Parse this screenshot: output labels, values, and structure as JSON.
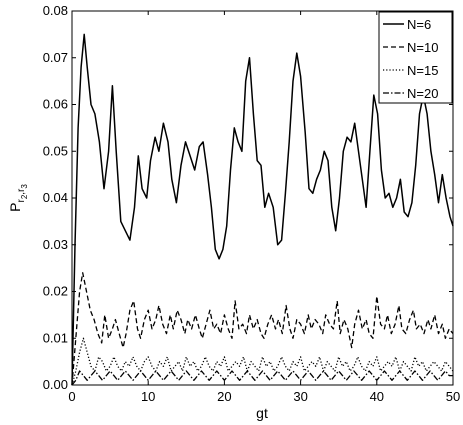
{
  "chart_data": {
    "type": "line",
    "title": "",
    "xlabel": "gt",
    "ylabel_main": "P",
    "ylabel_sub1": "r",
    "ylabel_sub1_index": "2",
    "ylabel_sep": ",",
    "ylabel_sub2": "r",
    "ylabel_sub2_index": "3",
    "xlim": [
      0,
      50
    ],
    "ylim": [
      0,
      0.08
    ],
    "x_ticks": [
      0,
      10,
      20,
      30,
      40,
      50
    ],
    "x_tick_labels": [
      "0",
      "10",
      "20",
      "30",
      "40",
      "50"
    ],
    "y_ticks": [
      0,
      0.01,
      0.02,
      0.03,
      0.04,
      0.05,
      0.06,
      0.07,
      0.08
    ],
    "y_tick_labels": [
      "0.00",
      "0.01",
      "0.02",
      "0.03",
      "0.04",
      "0.05",
      "0.06",
      "0.07",
      "0.08"
    ],
    "grid": false,
    "legend_position": "top-right",
    "series": [
      {
        "name": "N=6",
        "style": "solid",
        "x": [
          0,
          0.4,
          0.8,
          1.2,
          1.6,
          2.0,
          2.5,
          3.0,
          3.6,
          4.2,
          4.8,
          5.3,
          5.8,
          6.4,
          7.0,
          7.6,
          8.2,
          8.7,
          9.2,
          9.8,
          10.3,
          10.9,
          11.4,
          12.0,
          12.6,
          13.1,
          13.7,
          14.3,
          14.9,
          15.5,
          16.1,
          16.7,
          17.2,
          17.8,
          18.3,
          18.8,
          19.3,
          19.8,
          20.3,
          20.8,
          21.3,
          21.8,
          22.3,
          22.8,
          23.3,
          23.8,
          24.3,
          24.8,
          25.3,
          25.8,
          26.4,
          27.0,
          27.5,
          28.0,
          28.5,
          29.0,
          29.5,
          30.0,
          30.6,
          31.1,
          31.6,
          32.1,
          32.6,
          33.1,
          33.6,
          34.1,
          34.6,
          35.1,
          35.6,
          36.1,
          36.6,
          37.1,
          37.6,
          38.1,
          38.6,
          39.1,
          39.6,
          40.1,
          40.6,
          41.1,
          41.6,
          42.1,
          42.6,
          43.1,
          43.6,
          44.1,
          44.6,
          45.1,
          45.6,
          46.1,
          46.6,
          47.1,
          47.6,
          48.1,
          48.6,
          49.1,
          49.6,
          50.0
        ],
        "y": [
          0.0,
          0.03,
          0.055,
          0.068,
          0.075,
          0.068,
          0.06,
          0.058,
          0.052,
          0.042,
          0.05,
          0.064,
          0.05,
          0.035,
          0.033,
          0.031,
          0.038,
          0.049,
          0.042,
          0.04,
          0.048,
          0.053,
          0.05,
          0.056,
          0.052,
          0.044,
          0.039,
          0.047,
          0.052,
          0.049,
          0.046,
          0.051,
          0.052,
          0.045,
          0.038,
          0.029,
          0.027,
          0.029,
          0.034,
          0.046,
          0.055,
          0.052,
          0.05,
          0.065,
          0.07,
          0.058,
          0.048,
          0.047,
          0.038,
          0.041,
          0.038,
          0.03,
          0.031,
          0.041,
          0.052,
          0.065,
          0.071,
          0.066,
          0.054,
          0.042,
          0.041,
          0.044,
          0.046,
          0.05,
          0.048,
          0.038,
          0.033,
          0.04,
          0.05,
          0.053,
          0.052,
          0.056,
          0.05,
          0.044,
          0.038,
          0.05,
          0.062,
          0.058,
          0.046,
          0.04,
          0.041,
          0.038,
          0.04,
          0.044,
          0.037,
          0.036,
          0.039,
          0.047,
          0.058,
          0.062,
          0.058,
          0.05,
          0.045,
          0.039,
          0.045,
          0.04,
          0.036,
          0.034
        ]
      },
      {
        "name": "N=10",
        "style": "dashed",
        "x": [
          0,
          0.5,
          1.0,
          1.4,
          1.9,
          2.4,
          2.9,
          3.4,
          3.9,
          4.3,
          4.8,
          5.3,
          5.7,
          6.2,
          6.7,
          7.1,
          7.6,
          8.1,
          8.6,
          9.0,
          9.5,
          10.0,
          10.5,
          11.0,
          11.4,
          11.9,
          12.4,
          12.9,
          13.3,
          13.8,
          14.3,
          14.8,
          15.2,
          15.7,
          16.2,
          16.7,
          17.1,
          17.6,
          18.1,
          18.6,
          19.0,
          19.5,
          20.0,
          20.5,
          21.0,
          21.4,
          21.9,
          22.4,
          22.9,
          23.3,
          23.8,
          24.3,
          24.8,
          25.2,
          25.7,
          26.2,
          26.7,
          27.1,
          27.6,
          28.1,
          28.6,
          29.0,
          29.5,
          30.0,
          30.5,
          31.0,
          31.4,
          31.9,
          32.4,
          32.9,
          33.3,
          33.8,
          34.3,
          34.8,
          35.2,
          35.7,
          36.2,
          36.7,
          37.1,
          37.6,
          38.1,
          38.6,
          39.0,
          39.5,
          40.0,
          40.5,
          41.0,
          41.4,
          41.9,
          42.4,
          42.9,
          43.3,
          43.8,
          44.3,
          44.8,
          45.2,
          45.7,
          46.2,
          46.7,
          47.1,
          47.6,
          48.1,
          48.6,
          49.0,
          49.5,
          50.0
        ],
        "y": [
          0.0,
          0.01,
          0.02,
          0.024,
          0.02,
          0.016,
          0.014,
          0.011,
          0.009,
          0.015,
          0.01,
          0.012,
          0.014,
          0.011,
          0.008,
          0.011,
          0.016,
          0.018,
          0.012,
          0.01,
          0.014,
          0.016,
          0.012,
          0.014,
          0.017,
          0.013,
          0.011,
          0.015,
          0.012,
          0.016,
          0.014,
          0.011,
          0.014,
          0.012,
          0.015,
          0.012,
          0.01,
          0.013,
          0.016,
          0.012,
          0.013,
          0.011,
          0.015,
          0.012,
          0.01,
          0.018,
          0.012,
          0.013,
          0.011,
          0.015,
          0.012,
          0.014,
          0.011,
          0.01,
          0.013,
          0.015,
          0.012,
          0.014,
          0.011,
          0.017,
          0.012,
          0.01,
          0.014,
          0.013,
          0.011,
          0.015,
          0.012,
          0.014,
          0.013,
          0.011,
          0.015,
          0.013,
          0.012,
          0.018,
          0.011,
          0.014,
          0.012,
          0.008,
          0.013,
          0.016,
          0.012,
          0.014,
          0.011,
          0.01,
          0.019,
          0.013,
          0.012,
          0.015,
          0.011,
          0.013,
          0.017,
          0.012,
          0.011,
          0.014,
          0.016,
          0.012,
          0.013,
          0.011,
          0.014,
          0.012,
          0.015,
          0.011,
          0.013,
          0.01,
          0.012,
          0.011
        ]
      },
      {
        "name": "N=15",
        "style": "dotted",
        "x": [
          0,
          0.5,
          1.0,
          1.5,
          2.0,
          2.5,
          3.0,
          3.5,
          4.0,
          4.5,
          5.0,
          5.5,
          6.0,
          6.5,
          7.0,
          7.5,
          8.0,
          8.5,
          9.0,
          9.5,
          10.0,
          10.5,
          11.0,
          11.5,
          12.0,
          12.5,
          13.0,
          13.5,
          14.0,
          14.5,
          15.0,
          15.5,
          16.0,
          16.5,
          17.0,
          17.5,
          18.0,
          18.5,
          19.0,
          19.5,
          20.0,
          20.5,
          21.0,
          21.5,
          22.0,
          22.5,
          23.0,
          23.5,
          24.0,
          24.5,
          25.0,
          25.5,
          26.0,
          26.5,
          27.0,
          27.5,
          28.0,
          28.5,
          29.0,
          29.5,
          30.0,
          30.5,
          31.0,
          31.5,
          32.0,
          32.5,
          33.0,
          33.5,
          34.0,
          34.5,
          35.0,
          35.5,
          36.0,
          36.5,
          37.0,
          37.5,
          38.0,
          38.5,
          39.0,
          39.5,
          40.0,
          40.5,
          41.0,
          41.5,
          42.0,
          42.5,
          43.0,
          43.5,
          44.0,
          44.5,
          45.0,
          45.5,
          46.0,
          46.5,
          47.0,
          47.5,
          48.0,
          48.5,
          49.0,
          49.5,
          50.0
        ],
        "y": [
          0.0,
          0.003,
          0.007,
          0.01,
          0.007,
          0.004,
          0.003,
          0.006,
          0.005,
          0.003,
          0.004,
          0.006,
          0.004,
          0.003,
          0.005,
          0.004,
          0.006,
          0.004,
          0.003,
          0.005,
          0.006,
          0.004,
          0.003,
          0.005,
          0.004,
          0.006,
          0.003,
          0.004,
          0.005,
          0.003,
          0.006,
          0.004,
          0.005,
          0.003,
          0.004,
          0.006,
          0.004,
          0.003,
          0.005,
          0.004,
          0.006,
          0.003,
          0.004,
          0.005,
          0.004,
          0.006,
          0.003,
          0.005,
          0.004,
          0.003,
          0.006,
          0.004,
          0.005,
          0.003,
          0.004,
          0.006,
          0.004,
          0.003,
          0.005,
          0.004,
          0.006,
          0.003,
          0.004,
          0.005,
          0.004,
          0.006,
          0.003,
          0.005,
          0.004,
          0.003,
          0.006,
          0.004,
          0.005,
          0.003,
          0.004,
          0.006,
          0.004,
          0.003,
          0.005,
          0.004,
          0.006,
          0.003,
          0.004,
          0.005,
          0.004,
          0.006,
          0.003,
          0.005,
          0.004,
          0.003,
          0.006,
          0.004,
          0.005,
          0.003,
          0.004,
          0.005,
          0.004,
          0.003,
          0.005,
          0.004,
          0.003
        ]
      },
      {
        "name": "N=20",
        "style": "dashdot",
        "x": [
          0,
          0.5,
          1.0,
          1.5,
          2.0,
          2.5,
          3.0,
          3.5,
          4.0,
          4.5,
          5.0,
          5.5,
          6.0,
          6.5,
          7.0,
          7.5,
          8.0,
          8.5,
          9.0,
          9.5,
          10.0,
          10.5,
          11.0,
          11.5,
          12.0,
          12.5,
          13.0,
          13.5,
          14.0,
          14.5,
          15.0,
          15.5,
          16.0,
          16.5,
          17.0,
          17.5,
          18.0,
          18.5,
          19.0,
          19.5,
          20.0,
          20.5,
          21.0,
          21.5,
          22.0,
          22.5,
          23.0,
          23.5,
          24.0,
          24.5,
          25.0,
          25.5,
          26.0,
          26.5,
          27.0,
          27.5,
          28.0,
          28.5,
          29.0,
          29.5,
          30.0,
          30.5,
          31.0,
          31.5,
          32.0,
          32.5,
          33.0,
          33.5,
          34.0,
          34.5,
          35.0,
          35.5,
          36.0,
          36.5,
          37.0,
          37.5,
          38.0,
          38.5,
          39.0,
          39.5,
          40.0,
          40.5,
          41.0,
          41.5,
          42.0,
          42.5,
          43.0,
          43.5,
          44.0,
          44.5,
          45.0,
          45.5,
          46.0,
          46.5,
          47.0,
          47.5,
          48.0,
          48.5,
          49.0,
          49.5,
          50.0
        ],
        "y": [
          0.0,
          0.001,
          0.003,
          0.002,
          0.001,
          0.002,
          0.003,
          0.002,
          0.001,
          0.002,
          0.003,
          0.002,
          0.001,
          0.002,
          0.003,
          0.002,
          0.001,
          0.002,
          0.003,
          0.002,
          0.001,
          0.002,
          0.003,
          0.002,
          0.001,
          0.002,
          0.003,
          0.002,
          0.001,
          0.002,
          0.003,
          0.002,
          0.001,
          0.002,
          0.003,
          0.002,
          0.001,
          0.002,
          0.003,
          0.002,
          0.001,
          0.002,
          0.003,
          0.002,
          0.001,
          0.002,
          0.003,
          0.002,
          0.001,
          0.002,
          0.003,
          0.002,
          0.001,
          0.002,
          0.003,
          0.002,
          0.001,
          0.002,
          0.003,
          0.002,
          0.001,
          0.002,
          0.003,
          0.002,
          0.001,
          0.002,
          0.003,
          0.002,
          0.001,
          0.002,
          0.003,
          0.002,
          0.001,
          0.002,
          0.003,
          0.002,
          0.001,
          0.002,
          0.003,
          0.002,
          0.001,
          0.002,
          0.003,
          0.002,
          0.001,
          0.002,
          0.003,
          0.002,
          0.001,
          0.002,
          0.003,
          0.002,
          0.001,
          0.002,
          0.003,
          0.002,
          0.001,
          0.002,
          0.003,
          0.002,
          0.002
        ]
      }
    ]
  }
}
